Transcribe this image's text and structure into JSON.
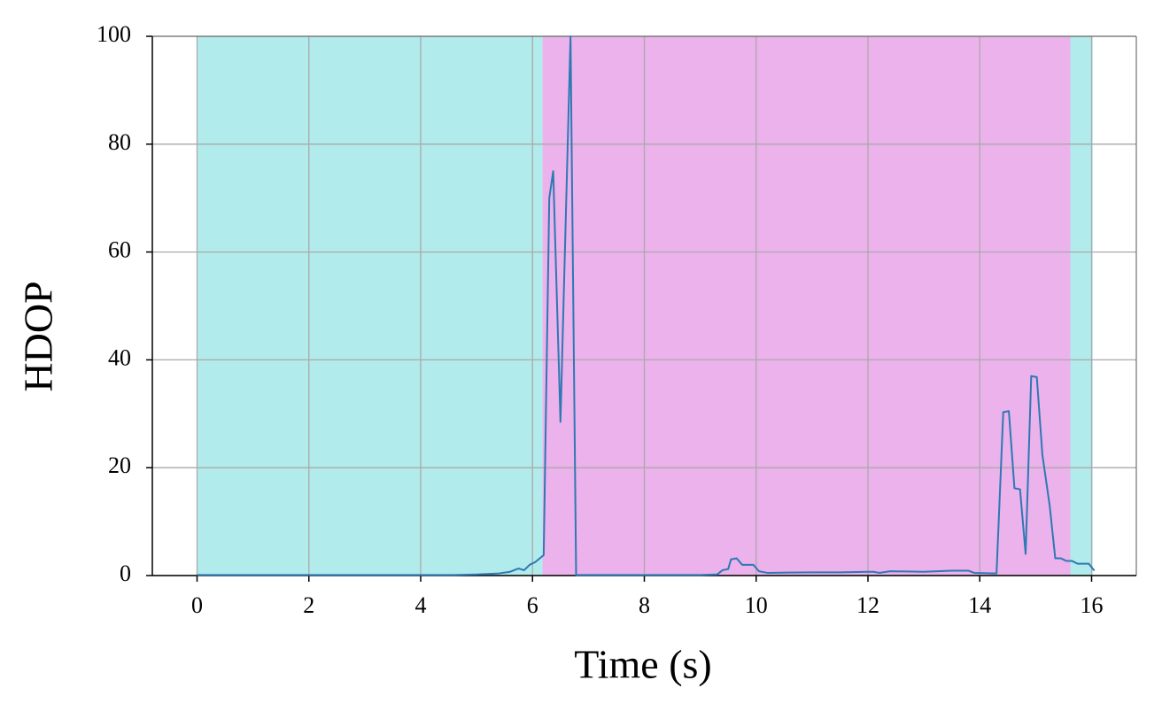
{
  "chart_data": {
    "type": "line",
    "x_label": "Time (s)",
    "y_label": "HDOP",
    "xlim": [
      -0.8,
      16.8
    ],
    "ylim": [
      0,
      100
    ],
    "xticks": [
      0,
      2,
      4,
      6,
      8,
      10,
      12,
      14,
      16
    ],
    "yticks": [
      0,
      20,
      40,
      60,
      80,
      100
    ],
    "grid": true,
    "regions": [
      {
        "start": 0,
        "end": 6.18,
        "color": "#b2ebeb"
      },
      {
        "start": 6.18,
        "end": 15.62,
        "color": "#ebb2eb"
      },
      {
        "start": 15.62,
        "end": 16.02,
        "color": "#b2ebeb"
      }
    ],
    "series": [
      {
        "color": "#2e78b4",
        "x": [
          0,
          1,
          2,
          3,
          4,
          4.6,
          5,
          5.4,
          5.6,
          5.75,
          5.85,
          5.95,
          6.05,
          6.2,
          6.3,
          6.37,
          6.5,
          6.68,
          6.78,
          7,
          8,
          9,
          9.3,
          9.4,
          9.5,
          9.55,
          9.65,
          9.75,
          9.95,
          10.05,
          10.2,
          11,
          11.5,
          12,
          12.1,
          12.2,
          12.4,
          13,
          13.5,
          13.8,
          13.9,
          14.3,
          14.42,
          14.52,
          14.62,
          14.72,
          14.82,
          14.92,
          15.02,
          15.12,
          15.25,
          15.35,
          15.45,
          15.55,
          15.65,
          15.75,
          15.95,
          16.05
        ],
        "values": [
          0.1,
          0.1,
          0.1,
          0.1,
          0.1,
          0.1,
          0.2,
          0.4,
          0.7,
          1.3,
          1.0,
          2.0,
          2.5,
          3.8,
          70,
          75,
          28.5,
          100,
          0.1,
          0.1,
          0.1,
          0.1,
          0.2,
          1.0,
          1.2,
          3.0,
          3.2,
          2.0,
          2.0,
          0.8,
          0.5,
          0.6,
          0.6,
          0.7,
          0.7,
          0.5,
          0.8,
          0.7,
          0.9,
          0.9,
          0.5,
          0.4,
          30.3,
          30.5,
          16.2,
          16,
          4,
          37,
          36.8,
          22.4,
          13,
          3.2,
          3.2,
          2.7,
          2.7,
          2.2,
          2.2,
          0.9
        ]
      }
    ]
  }
}
